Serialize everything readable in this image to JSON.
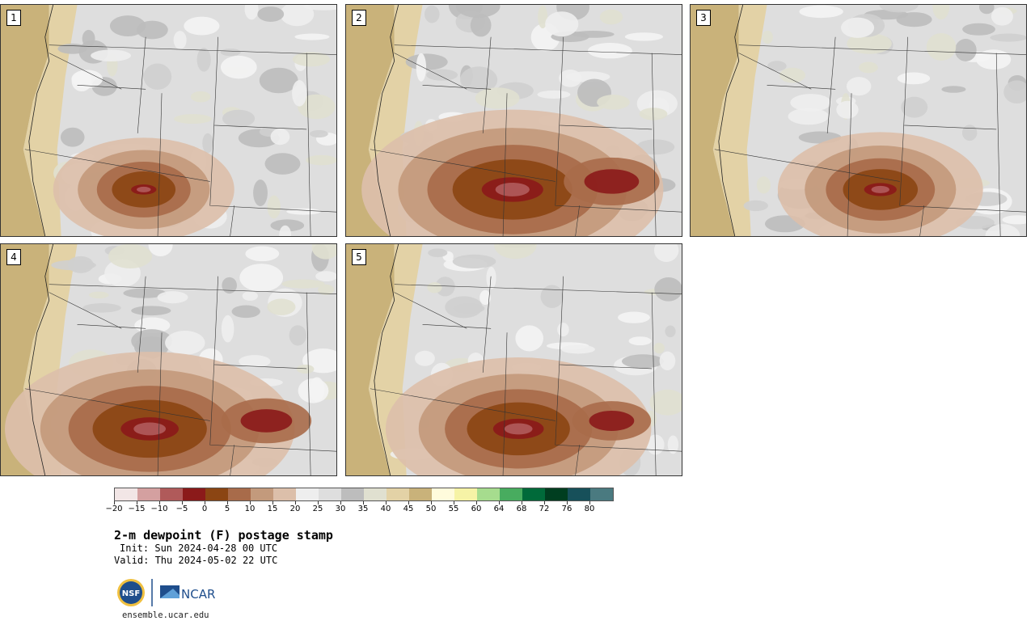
{
  "panels": [
    {
      "label": "1",
      "intensity": 0.35
    },
    {
      "label": "2",
      "intensity": 0.85
    },
    {
      "label": "3",
      "intensity": 0.45
    },
    {
      "label": "4",
      "intensity": 0.8
    },
    {
      "label": "5",
      "intensity": 0.7
    }
  ],
  "colorbar": {
    "colors": [
      "#f2e6e6",
      "#d4a0a0",
      "#b05a5a",
      "#8b1a1a",
      "#8b4513",
      "#a86b4a",
      "#c39a7c",
      "#dcbfaa",
      "#eeeeee",
      "#dedede",
      "#bdbdbd",
      "#e0e0d0",
      "#e3d2a6",
      "#c9b27a",
      "#fffbdc",
      "#f6f3a6",
      "#a6dc8e",
      "#48ac5f",
      "#006a3a",
      "#003e20",
      "#17505a",
      "#4a7a80"
    ],
    "ticks": [
      "−20",
      "−15",
      "−10",
      "−5",
      "0",
      "5",
      "10",
      "15",
      "20",
      "25",
      "30",
      "35",
      "40",
      "45",
      "50",
      "55",
      "60",
      "64",
      "68",
      "72",
      "76",
      "80"
    ]
  },
  "title": "2-m dewpoint (F) postage stamp",
  "init": "Init: Sun 2024-04-28 00 UTC",
  "valid": "Valid: Thu 2024-05-02 22 UTC",
  "logos": {
    "nsf": "NSF",
    "ncar": "NCAR"
  },
  "url": "ensemble.ucar.edu"
}
